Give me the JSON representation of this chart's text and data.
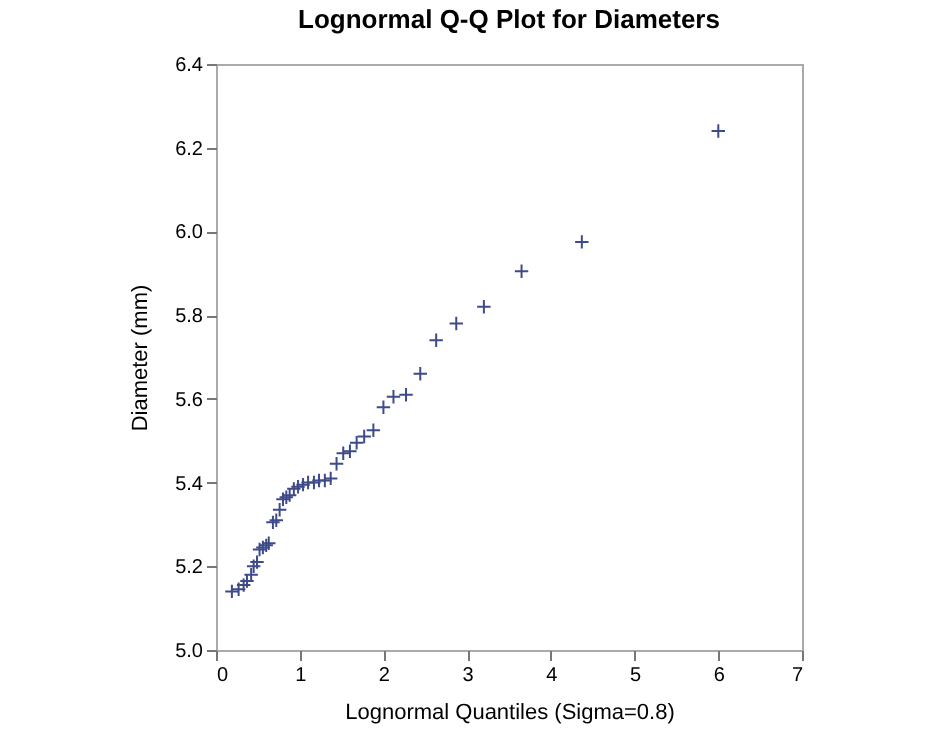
{
  "chart_data": {
    "type": "scatter",
    "title": "Lognormal Q-Q Plot for Diameters",
    "xlabel": "Lognormal Quantiles (Sigma=0.8)",
    "ylabel": "Diameter (mm)",
    "xlim": [
      0,
      7
    ],
    "xticks": [
      0,
      1,
      2,
      3,
      4,
      5,
      6,
      7
    ],
    "ylim": [
      5.0,
      6.4
    ],
    "yticks": [
      {
        "value": 5,
        "label": "5.0"
      },
      5.2,
      5.4,
      5.6,
      5.8,
      {
        "value": 6,
        "label": "6.0"
      },
      6.2,
      6.4
    ],
    "marker": "cross",
    "grid": false,
    "series": [
      {
        "color": "#3f4a8a",
        "x": [
          0.19,
          0.27,
          0.33,
          0.37,
          0.42,
          0.45,
          0.49,
          0.52,
          0.56,
          0.6,
          0.63,
          0.68,
          0.72,
          0.76,
          0.8,
          0.84,
          0.88,
          0.93,
          0.98,
          1.04,
          1.1,
          1.17,
          1.23,
          1.3,
          1.37,
          1.44,
          1.52,
          1.6,
          1.68,
          1.77,
          1.88,
          2.0,
          2.12,
          2.27,
          2.44,
          2.63,
          2.87,
          3.2,
          3.65,
          4.37,
          6.0
        ],
        "values": [
          5.14,
          5.145,
          5.155,
          5.165,
          5.18,
          5.2,
          5.21,
          5.24,
          5.245,
          5.25,
          5.255,
          5.305,
          5.31,
          5.335,
          5.36,
          5.365,
          5.37,
          5.385,
          5.39,
          5.395,
          5.4,
          5.4,
          5.405,
          5.405,
          5.41,
          5.445,
          5.47,
          5.475,
          5.495,
          5.51,
          5.525,
          5.58,
          5.605,
          5.61,
          5.66,
          5.74,
          5.78,
          5.82,
          5.905,
          5.975,
          6.24
        ]
      }
    ]
  }
}
